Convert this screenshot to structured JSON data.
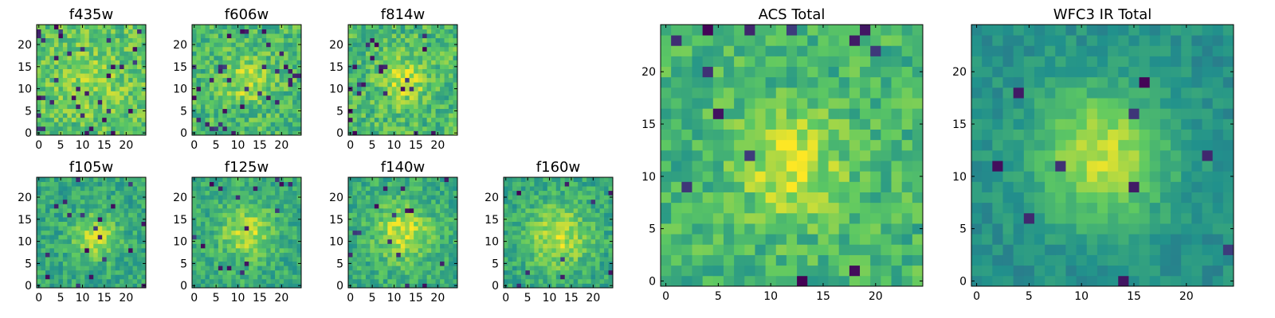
{
  "figure": {
    "colormap": "viridis",
    "colormap_stops": [
      "#440154",
      "#3b528b",
      "#21918c",
      "#5ec962",
      "#fde725"
    ]
  },
  "chart_data": [
    {
      "type": "heatmap",
      "title": "f435w",
      "size": 25,
      "xticks": [
        "0",
        "5",
        "10",
        "15",
        "20"
      ],
      "yticks": [
        "0",
        "5",
        "10",
        "15",
        "20"
      ],
      "xlim": [
        0,
        24
      ],
      "ylim": [
        0,
        24
      ],
      "seed": 11,
      "center": [
        12,
        12
      ],
      "sigma": 5,
      "amplitude": 0.1,
      "base": 0.72,
      "noise": 0.16,
      "dark_fraction": 0.05
    },
    {
      "type": "heatmap",
      "title": "f606w",
      "size": 25,
      "xticks": [
        "0",
        "5",
        "10",
        "15",
        "20"
      ],
      "yticks": [
        "0",
        "5",
        "10",
        "15",
        "20"
      ],
      "xlim": [
        0,
        24
      ],
      "ylim": [
        0,
        24
      ],
      "seed": 23,
      "center": [
        12,
        12
      ],
      "sigma": 3.5,
      "amplitude": 0.22,
      "base": 0.68,
      "noise": 0.16,
      "dark_fraction": 0.045
    },
    {
      "type": "heatmap",
      "title": "f814w",
      "size": 25,
      "xticks": [
        "0",
        "5",
        "10",
        "15",
        "20"
      ],
      "yticks": [
        "0",
        "5",
        "10",
        "15",
        "20"
      ],
      "xlim": [
        0,
        24
      ],
      "ylim": [
        0,
        24
      ],
      "seed": 37,
      "center": [
        12,
        12
      ],
      "sigma": 3.5,
      "amplitude": 0.25,
      "base": 0.68,
      "noise": 0.16,
      "dark_fraction": 0.045
    },
    {
      "type": "heatmap",
      "title": "f105w",
      "size": 25,
      "xticks": [
        "0",
        "5",
        "10",
        "15",
        "20"
      ],
      "yticks": [
        "0",
        "5",
        "10",
        "15",
        "20"
      ],
      "xlim": [
        0,
        24
      ],
      "ylim": [
        0,
        24
      ],
      "seed": 41,
      "center": [
        13,
        11
      ],
      "sigma": 3.5,
      "amplitude": 0.3,
      "base": 0.6,
      "noise": 0.13,
      "dark_fraction": 0.03
    },
    {
      "type": "heatmap",
      "title": "f125w",
      "size": 25,
      "xticks": [
        "0",
        "5",
        "10",
        "15",
        "20"
      ],
      "yticks": [
        "0",
        "5",
        "10",
        "15",
        "20"
      ],
      "xlim": [
        0,
        24
      ],
      "ylim": [
        0,
        24
      ],
      "seed": 53,
      "center": [
        12,
        12
      ],
      "sigma": 4,
      "amplitude": 0.28,
      "base": 0.62,
      "noise": 0.13,
      "dark_fraction": 0.025
    },
    {
      "type": "heatmap",
      "title": "f140w",
      "size": 25,
      "xticks": [
        "0",
        "5",
        "10",
        "15",
        "20"
      ],
      "yticks": [
        "0",
        "5",
        "10",
        "15",
        "20"
      ],
      "xlim": [
        0,
        24
      ],
      "ylim": [
        0,
        24
      ],
      "seed": 67,
      "center": [
        12,
        12
      ],
      "sigma": 4.5,
      "amplitude": 0.3,
      "base": 0.62,
      "noise": 0.13,
      "dark_fraction": 0.02
    },
    {
      "type": "heatmap",
      "title": "f160w",
      "size": 25,
      "xticks": [
        "0",
        "5",
        "10",
        "15",
        "20"
      ],
      "yticks": [
        "0",
        "5",
        "10",
        "15",
        "20"
      ],
      "xlim": [
        0,
        24
      ],
      "ylim": [
        0,
        24
      ],
      "seed": 79,
      "center": [
        12,
        11
      ],
      "sigma": 5,
      "amplitude": 0.3,
      "base": 0.6,
      "noise": 0.13,
      "dark_fraction": 0.02
    },
    {
      "type": "heatmap",
      "title": "ACS Total",
      "size": 25,
      "xticks": [
        "0",
        "5",
        "10",
        "15",
        "20"
      ],
      "yticks": [
        "0",
        "5",
        "10",
        "15",
        "20"
      ],
      "xlim": [
        0,
        24
      ],
      "ylim": [
        0,
        24
      ],
      "seed": 97,
      "center": [
        12,
        11
      ],
      "sigma": 3.5,
      "amplitude": 0.28,
      "base": 0.66,
      "noise": 0.14,
      "dark_fraction": 0.025
    },
    {
      "type": "heatmap",
      "title": "WFC3 IR Total",
      "size": 25,
      "xticks": [
        "0",
        "5",
        "10",
        "15",
        "20"
      ],
      "yticks": [
        "0",
        "5",
        "10",
        "15",
        "20"
      ],
      "xlim": [
        0,
        24
      ],
      "ylim": [
        0,
        24
      ],
      "seed": 131,
      "center": [
        12,
        12
      ],
      "sigma": 4.5,
      "amplitude": 0.4,
      "base": 0.5,
      "noise": 0.08,
      "dark_fraction": 0.02
    }
  ]
}
